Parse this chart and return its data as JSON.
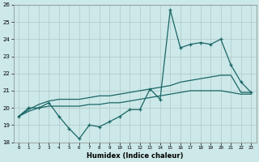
{
  "xlabel": "Humidex (Indice chaleur)",
  "bg_color": "#cce8e8",
  "grid_color": "#b0c8c8",
  "line_color": "#1a6666",
  "x": [
    0,
    1,
    2,
    3,
    4,
    5,
    6,
    7,
    8,
    9,
    10,
    11,
    12,
    13,
    14,
    15,
    16,
    17,
    18,
    19,
    20,
    21,
    22,
    23
  ],
  "line_main": [
    19.5,
    20.0,
    20.0,
    20.3,
    19.5,
    18.8,
    18.2,
    19.0,
    18.9,
    19.2,
    19.5,
    19.9,
    19.9,
    21.1,
    20.5,
    25.7,
    23.5,
    23.7,
    23.8,
    23.7,
    24.0,
    22.5,
    21.5,
    20.9
  ],
  "line_trend1": [
    19.5,
    19.9,
    20.2,
    20.4,
    20.5,
    20.5,
    20.5,
    20.6,
    20.7,
    20.7,
    20.8,
    20.9,
    21.0,
    21.1,
    21.2,
    21.3,
    21.5,
    21.6,
    21.7,
    21.8,
    21.9,
    21.9,
    20.9,
    20.9
  ],
  "line_trend2": [
    19.5,
    19.8,
    20.0,
    20.1,
    20.1,
    20.1,
    20.1,
    20.2,
    20.2,
    20.3,
    20.3,
    20.4,
    20.5,
    20.6,
    20.7,
    20.8,
    20.9,
    21.0,
    21.0,
    21.0,
    21.0,
    20.9,
    20.8,
    20.8
  ],
  "ylim": [
    18,
    26
  ],
  "xlim": [
    -0.5,
    23.5
  ],
  "yticks": [
    18,
    19,
    20,
    21,
    22,
    23,
    24,
    25,
    26
  ],
  "xticks": [
    0,
    1,
    2,
    3,
    4,
    5,
    6,
    7,
    8,
    9,
    10,
    11,
    12,
    13,
    14,
    15,
    16,
    17,
    18,
    19,
    20,
    21,
    22,
    23
  ]
}
